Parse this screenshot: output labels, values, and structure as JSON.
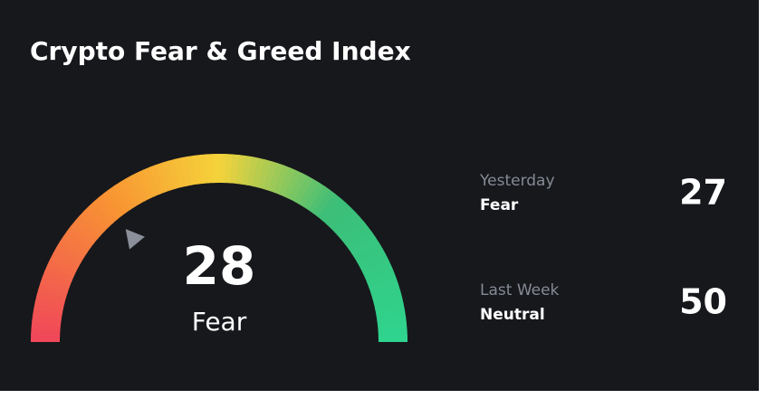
{
  "title": "Crypto Fear & Greed Index",
  "gauge": {
    "value": 28,
    "label": "Fear",
    "range": [
      0,
      100
    ]
  },
  "history": [
    {
      "period": "Yesterday",
      "label": "Fear",
      "value": 27
    },
    {
      "period": "Last Week",
      "label": "Neutral",
      "value": 50
    }
  ]
}
